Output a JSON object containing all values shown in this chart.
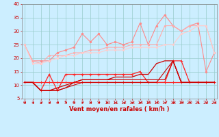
{
  "x": [
    0,
    1,
    2,
    3,
    4,
    5,
    6,
    7,
    8,
    9,
    10,
    11,
    12,
    13,
    14,
    15,
    16,
    17,
    18,
    19,
    20,
    21,
    22,
    23
  ],
  "series": [
    {
      "name": "line1_pink_spiky",
      "color": "#ff8888",
      "lw": 0.8,
      "marker": "o",
      "ms": 1.8,
      "y": [
        25,
        19,
        19,
        19,
        22,
        23,
        24,
        29,
        26,
        29,
        25,
        26,
        25,
        26,
        33,
        25,
        32,
        36,
        32,
        30,
        32,
        33,
        15,
        22
      ]
    },
    {
      "name": "line2_pink_smooth1",
      "color": "#ffaaaa",
      "lw": 0.8,
      "marker": "o",
      "ms": 1.5,
      "y": [
        25,
        19,
        18,
        21,
        21,
        21,
        22,
        22,
        23,
        23,
        24,
        24,
        24,
        25,
        25,
        25,
        25,
        32,
        32,
        30,
        32,
        32,
        32,
        22
      ]
    },
    {
      "name": "line3_pink_smooth2",
      "color": "#ffcccc",
      "lw": 0.8,
      "marker": "o",
      "ms": 1.5,
      "y": [
        25,
        18,
        18,
        19,
        20,
        21,
        21,
        22,
        22,
        22,
        23,
        23,
        23,
        24,
        24,
        24,
        24,
        25,
        25,
        29,
        30,
        32,
        32,
        22
      ]
    },
    {
      "name": "line4_red_upper_markers",
      "color": "#ff2222",
      "lw": 0.9,
      "marker": "+",
      "ms": 3.5,
      "y": [
        11,
        11,
        8,
        14,
        8,
        14,
        14,
        14,
        14,
        14,
        14,
        14,
        14,
        14,
        15,
        11,
        11,
        11,
        19,
        19,
        11,
        11,
        11,
        11
      ]
    },
    {
      "name": "line5_red_rising",
      "color": "#cc0000",
      "lw": 0.9,
      "marker": null,
      "ms": 0,
      "y": [
        11,
        11,
        8,
        8,
        9,
        10,
        11,
        12,
        12,
        12,
        12,
        13,
        13,
        13,
        14,
        14,
        18,
        19,
        19,
        11,
        11,
        11,
        11,
        11
      ]
    },
    {
      "name": "line6_red_flat_markers",
      "color": "#ff2222",
      "lw": 0.9,
      "marker": "+",
      "ms": 3.0,
      "y": [
        11,
        11,
        11,
        11,
        11,
        11,
        11,
        11,
        11,
        11,
        11,
        11,
        11,
        11,
        11,
        11,
        11,
        11,
        11,
        11,
        11,
        11,
        11,
        11
      ]
    },
    {
      "name": "line7_red_lower",
      "color": "#cc0000",
      "lw": 0.8,
      "marker": null,
      "ms": 0,
      "y": [
        11,
        11,
        8,
        8,
        8,
        9,
        10,
        11,
        11,
        11,
        11,
        11,
        11,
        11,
        11,
        11,
        11,
        15,
        19,
        11,
        11,
        11,
        11,
        11
      ]
    },
    {
      "name": "line8_dark_diagonal",
      "color": "#cc0000",
      "lw": 0.8,
      "marker": null,
      "ms": 0,
      "y": [
        11,
        11,
        8,
        8,
        8,
        9,
        11,
        12,
        12,
        12,
        12,
        12,
        12,
        12,
        12,
        12,
        12,
        12,
        19,
        11,
        11,
        11,
        11,
        11
      ]
    }
  ],
  "xlim": [
    -0.3,
    23.3
  ],
  "ylim": [
    5,
    40
  ],
  "yticks": [
    5,
    10,
    15,
    20,
    25,
    30,
    35,
    40
  ],
  "ytick_labels": [
    "5",
    "10",
    "15",
    "20",
    "25",
    "30",
    "35",
    "40"
  ],
  "xticks": [
    0,
    1,
    2,
    3,
    4,
    5,
    6,
    7,
    8,
    9,
    10,
    11,
    12,
    13,
    14,
    15,
    16,
    17,
    18,
    19,
    20,
    21,
    22,
    23
  ],
  "xlabel": "Vent moyen/en rafales ( km/h )",
  "xlabel_color": "#cc0000",
  "xlabel_fontsize": 6,
  "bg_color": "#cceeff",
  "grid_color": "#99cccc",
  "tick_color": "#cc0000",
  "tick_fontsize": 5,
  "arrow_color": "#cc0000"
}
